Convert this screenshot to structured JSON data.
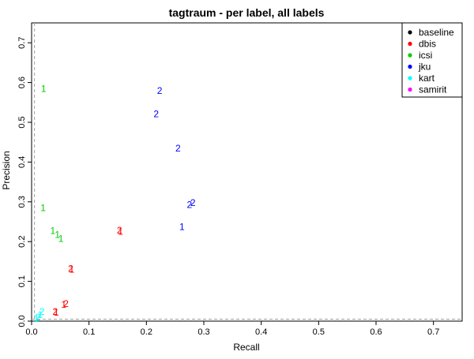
{
  "chart_data": {
    "type": "scatter",
    "title": "tagtraum - per label, all labels",
    "xlabel": "Recall",
    "ylabel": "Precision",
    "xlim": [
      0,
      0.75
    ],
    "ylim": [
      0,
      0.75
    ],
    "xticks": [
      "0.0",
      "0.1",
      "0.2",
      "0.3",
      "0.4",
      "0.5",
      "0.6",
      "0.7"
    ],
    "yticks": [
      "0.0",
      "0.1",
      "0.2",
      "0.3",
      "0.4",
      "0.5",
      "0.6",
      "0.7"
    ],
    "grid": false,
    "legend_position": "top-right",
    "reference_lines": {
      "x": 0.005,
      "y": 0.005,
      "style": "dashed",
      "color": "#a0a0a0"
    },
    "series": [
      {
        "name": "baseline",
        "color": "#000000",
        "points": []
      },
      {
        "name": "dbis",
        "color": "#ff0000",
        "points": [
          {
            "x": 0.153,
            "y": 0.228,
            "label": "2"
          },
          {
            "x": 0.155,
            "y": 0.225,
            "label": "1"
          },
          {
            "x": 0.068,
            "y": 0.132,
            "label": "2"
          },
          {
            "x": 0.07,
            "y": 0.13,
            "label": "1"
          },
          {
            "x": 0.06,
            "y": 0.044,
            "label": "2"
          },
          {
            "x": 0.056,
            "y": 0.042,
            "label": "1"
          },
          {
            "x": 0.041,
            "y": 0.024,
            "label": "2"
          },
          {
            "x": 0.043,
            "y": 0.022,
            "label": "1"
          }
        ]
      },
      {
        "name": "icsi",
        "color": "#00cd00",
        "points": [
          {
            "x": 0.021,
            "y": 0.584,
            "label": "1"
          },
          {
            "x": 0.02,
            "y": 0.285,
            "label": "1"
          },
          {
            "x": 0.037,
            "y": 0.227,
            "label": "1"
          },
          {
            "x": 0.045,
            "y": 0.217,
            "label": "1"
          },
          {
            "x": 0.051,
            "y": 0.207,
            "label": "1"
          }
        ]
      },
      {
        "name": "jku",
        "color": "#0000ff",
        "points": [
          {
            "x": 0.223,
            "y": 0.579,
            "label": "2"
          },
          {
            "x": 0.217,
            "y": 0.521,
            "label": "2"
          },
          {
            "x": 0.255,
            "y": 0.435,
            "label": "2"
          },
          {
            "x": 0.281,
            "y": 0.298,
            "label": "2"
          },
          {
            "x": 0.275,
            "y": 0.293,
            "label": "2"
          },
          {
            "x": 0.262,
            "y": 0.237,
            "label": "1"
          }
        ]
      },
      {
        "name": "kart",
        "color": "#00ffff",
        "points": [
          {
            "x": 0.018,
            "y": 0.024,
            "label": "2"
          },
          {
            "x": 0.015,
            "y": 0.016,
            "label": "1"
          },
          {
            "x": 0.011,
            "y": 0.01,
            "label": "2"
          },
          {
            "x": 0.008,
            "y": 0.006,
            "label": "1"
          }
        ]
      },
      {
        "name": "samirit",
        "color": "#ff00ff",
        "points": []
      }
    ]
  }
}
